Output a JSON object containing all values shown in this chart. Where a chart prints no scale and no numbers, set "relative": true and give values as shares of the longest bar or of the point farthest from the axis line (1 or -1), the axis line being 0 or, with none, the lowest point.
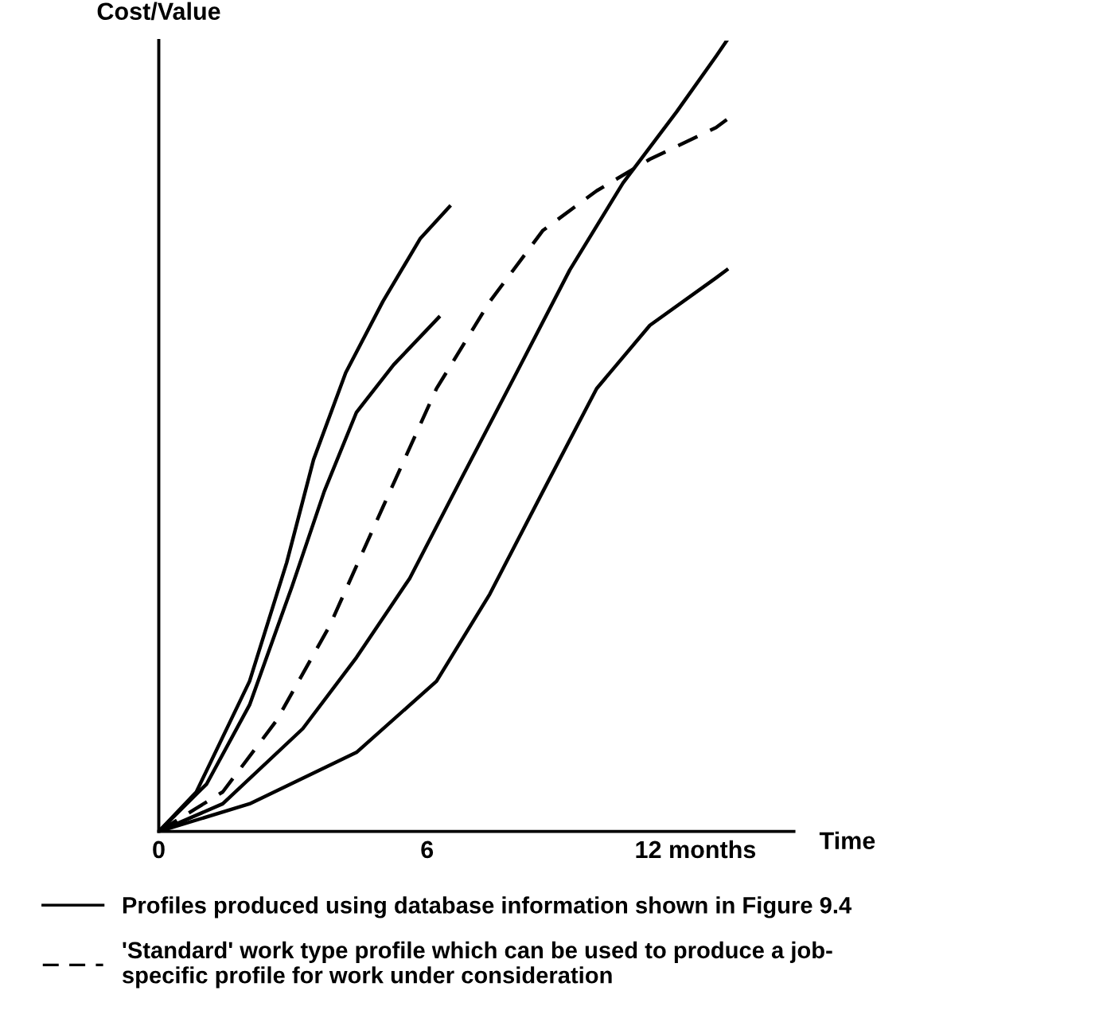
{
  "chart_data": {
    "type": "line",
    "relative": true,
    "xlabel": "Time",
    "ylabel": "Cost/Value",
    "xlim": [
      0,
      14.2
    ],
    "xticks": [
      0,
      6,
      {
        "value": 12,
        "label": "12 months"
      }
    ],
    "legend": "bottom",
    "grid": false,
    "marker": "none",
    "series": [
      {
        "name": "Profiles produced using database information shown in Figure 9.4",
        "color": "#000000",
        "line_style": "solid",
        "x": [
          0,
          0.84,
          2.03,
          2.86,
          3.46,
          4.18,
          5.01,
          5.85,
          6.5
        ],
        "values": [
          0,
          0.05,
          0.19,
          0.34,
          0.47,
          0.58,
          0.67,
          0.75,
          0.79
        ]
      },
      {
        "color": "#000000",
        "line_style": "solid",
        "x": [
          0,
          1.07,
          2.03,
          2.98,
          3.7,
          4.42,
          5.25,
          6.26
        ],
        "values": [
          0,
          0.06,
          0.16,
          0.31,
          0.43,
          0.53,
          0.59,
          0.65
        ]
      },
      {
        "name": "'Standard' work type profile which can be used to produce a job-\nspecific profile for work under consideration",
        "color": "#000000",
        "line_style": "dashed",
        "x": [
          0,
          1.43,
          2.63,
          3.82,
          5.01,
          6.21,
          7.4,
          8.59,
          9.79,
          10.98,
          12.46,
          12.7
        ],
        "values": [
          0,
          0.05,
          0.14,
          0.26,
          0.41,
          0.56,
          0.67,
          0.76,
          0.81,
          0.85,
          0.89,
          0.9
        ]
      },
      {
        "color": "#000000",
        "line_style": "solid",
        "x": [
          0,
          1.43,
          3.22,
          4.42,
          5.61,
          6.8,
          8.0,
          9.19,
          10.38,
          11.58,
          12.46,
          12.7
        ],
        "values": [
          0,
          0.035,
          0.13,
          0.22,
          0.32,
          0.45,
          0.58,
          0.71,
          0.82,
          0.91,
          0.98,
          1.0
        ]
      },
      {
        "color": "#000000",
        "line_style": "solid",
        "x": [
          0,
          2.03,
          4.42,
          6.21,
          7.4,
          8.59,
          9.79,
          10.98,
          12.46,
          12.7
        ],
        "values": [
          0,
          0.035,
          0.1,
          0.19,
          0.3,
          0.43,
          0.56,
          0.64,
          0.7,
          0.71
        ]
      }
    ]
  }
}
